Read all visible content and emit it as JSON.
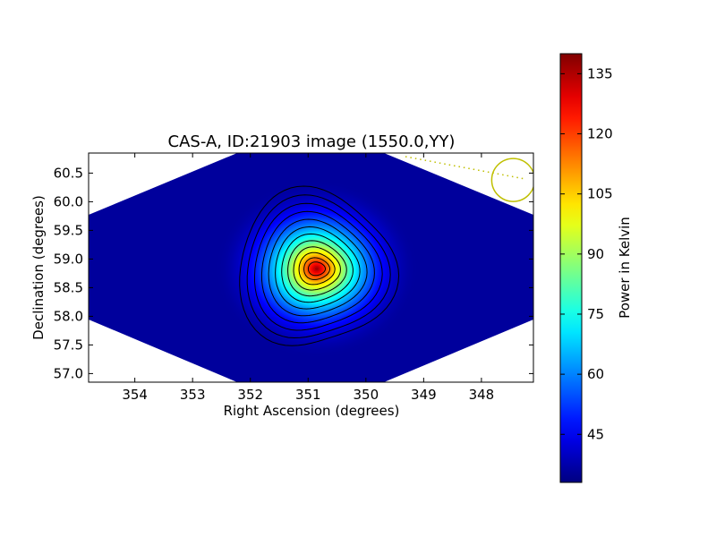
{
  "chart_data": {
    "type": "heatmap",
    "title": "CAS-A, ID:21903 image (1550.0,YY)",
    "xlabel": "Right Ascension (degrees)",
    "ylabel": "Declination (degrees)",
    "xlim": [
      354.8,
      347.1
    ],
    "ylim": [
      56.85,
      60.85
    ],
    "x_reversed": true,
    "x_ticks": [
      354,
      353,
      352,
      351,
      350,
      349,
      348
    ],
    "y_ticks": [
      57.0,
      57.5,
      58.0,
      58.5,
      59.0,
      59.5,
      60.0,
      60.5
    ],
    "x_tick_labels": [
      "354",
      "353",
      "352",
      "351",
      "350",
      "349",
      "348"
    ],
    "y_tick_labels": [
      "57.0",
      "57.5",
      "58.0",
      "58.5",
      "59.0",
      "59.5",
      "60.0",
      "60.5"
    ],
    "colormap": "jet",
    "colorbar": {
      "label": "Power in Kelvin",
      "vmin": 33,
      "vmax": 140,
      "ticks": [
        45,
        60,
        75,
        90,
        105,
        120,
        135
      ],
      "tick_labels": [
        "45",
        "60",
        "75",
        "90",
        "105",
        "120",
        "135"
      ]
    },
    "source_peak": {
      "ra": 350.85,
      "dec": 58.83,
      "value": 140
    },
    "background_level": 36,
    "contour_count": 12,
    "beam_marker": {
      "ra": 347.45,
      "dec": 60.38,
      "color": "#bfbf00"
    },
    "footprint_shape": "diamond"
  }
}
